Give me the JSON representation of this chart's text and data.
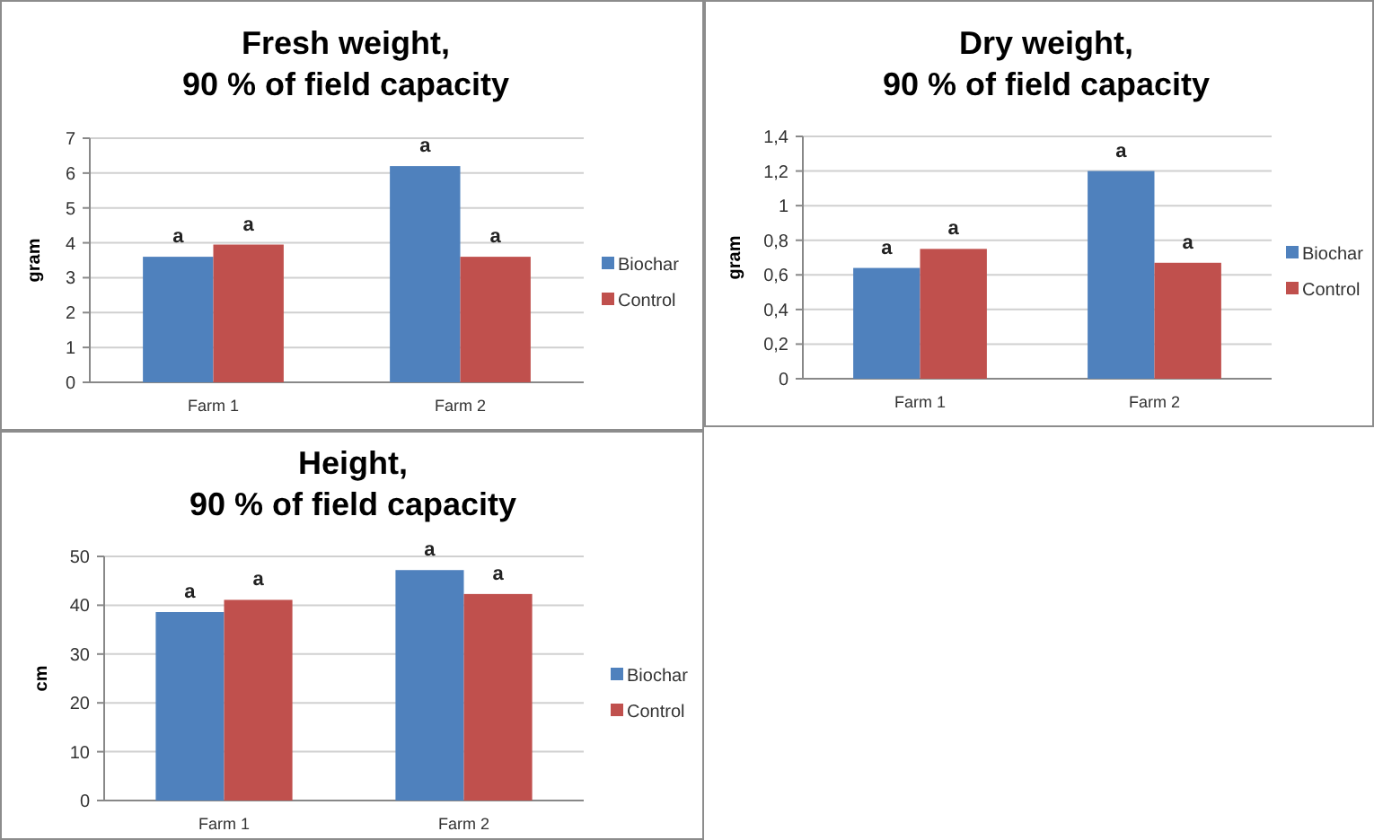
{
  "chart_data": [
    {
      "type": "bar",
      "title": "Fresh weight,\n90 % of field capacity",
      "ylabel": "gram",
      "categories": [
        "Farm 1",
        "Farm 2"
      ],
      "ylim": [
        0,
        7
      ],
      "yticks": [
        0,
        1,
        2,
        3,
        4,
        5,
        6,
        7
      ],
      "grid": "y",
      "legend": "right",
      "series": [
        {
          "name": "Biochar",
          "color": "#4f81bd",
          "values": [
            3.6,
            6.2
          ],
          "value_labels": [
            "a",
            "a"
          ]
        },
        {
          "name": "Control",
          "color": "#c0504d",
          "values": [
            3.95,
            3.6
          ],
          "value_labels": [
            "a",
            "a"
          ]
        }
      ]
    },
    {
      "type": "bar",
      "title": "Dry weight,\n90 % of field capacity",
      "ylabel": "gram",
      "categories": [
        "Farm 1",
        "Farm 2"
      ],
      "ylim": [
        0,
        1.4
      ],
      "yticks": [
        0,
        {
          "value": 0.2,
          "label": "0,2"
        },
        {
          "value": 0.4,
          "label": "0,4"
        },
        {
          "value": 0.6,
          "label": "0,6"
        },
        {
          "value": 0.8,
          "label": "0,8"
        },
        1,
        {
          "value": 1.2,
          "label": "1,2"
        },
        {
          "value": 1.4,
          "label": "1,4"
        }
      ],
      "grid": "y",
      "legend": "right",
      "series": [
        {
          "name": "Biochar",
          "color": "#4f81bd",
          "values": [
            0.64,
            1.2
          ],
          "value_labels": [
            "a",
            "a"
          ]
        },
        {
          "name": "Control",
          "color": "#c0504d",
          "values": [
            0.75,
            0.67
          ],
          "value_labels": [
            "a",
            "a"
          ]
        }
      ]
    },
    {
      "type": "bar",
      "title": "Height,\n90 % of field capacity",
      "ylabel": "cm",
      "categories": [
        "Farm 1",
        "Farm 2"
      ],
      "ylim": [
        0,
        50
      ],
      "yticks": [
        0,
        10,
        20,
        30,
        40,
        50
      ],
      "grid": "y",
      "legend": "right",
      "series": [
        {
          "name": "Biochar",
          "color": "#4f81bd",
          "values": [
            38.6,
            47.2
          ],
          "value_labels": [
            "a",
            "a"
          ]
        },
        {
          "name": "Control",
          "color": "#c0504d",
          "values": [
            41.1,
            42.3
          ],
          "value_labels": [
            "a",
            "a"
          ]
        }
      ]
    }
  ]
}
